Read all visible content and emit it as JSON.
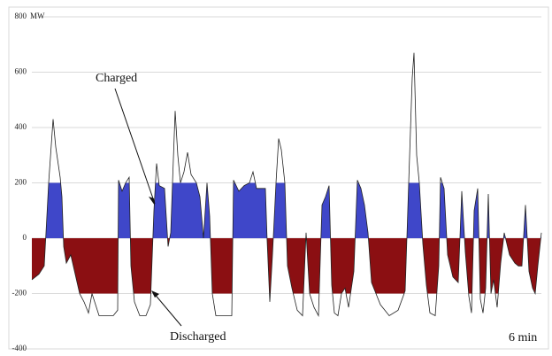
{
  "chart_data": {
    "type": "area",
    "y_unit": "MW",
    "annotations": [
      "Charged",
      "Discharged",
      "6 min"
    ],
    "ylim": [
      -400,
      800
    ],
    "yticks": [
      -400,
      -200,
      0,
      200,
      400,
      600,
      800
    ],
    "xlim": [
      0,
      576
    ],
    "grid": true,
    "fill_limits": [
      -200,
      200
    ],
    "line_color": "#222222",
    "charged_color": "#3f47c9",
    "discharged_color": "#8b0f12",
    "x": [
      0,
      8,
      14,
      16,
      19,
      24,
      27,
      32,
      34,
      36,
      39,
      44,
      49,
      54,
      59,
      64,
      68,
      72,
      76,
      84,
      92,
      97,
      98,
      102,
      106,
      110,
      112,
      116,
      122,
      129,
      134,
      138,
      141,
      144,
      150,
      154,
      157,
      159,
      162,
      165,
      168,
      172,
      176,
      180,
      186,
      190,
      194,
      198,
      201,
      204,
      208,
      216,
      226,
      228,
      234,
      240,
      246,
      250,
      254,
      264,
      266,
      269,
      272,
      276,
      279,
      282,
      286,
      289,
      294,
      300,
      306,
      310,
      314,
      319,
      324,
      328,
      332,
      336,
      339,
      342,
      346,
      350,
      354,
      358,
      364,
      368,
      372,
      376,
      380,
      384,
      394,
      404,
      414,
      422,
      426,
      430,
      432,
      435,
      438,
      442,
      446,
      450,
      456,
      460,
      462,
      466,
      470,
      476,
      482,
      486,
      490,
      494,
      497,
      500,
      504,
      507,
      510,
      513,
      516,
      519,
      522,
      526,
      530,
      534,
      540,
      546,
      550,
      554,
      558,
      562,
      566,
      569,
      572,
      576
    ],
    "values": [
      -150,
      -130,
      -100,
      20,
      200,
      430,
      330,
      220,
      150,
      -30,
      -90,
      -60,
      -130,
      -200,
      -230,
      -270,
      -200,
      -240,
      -280,
      -280,
      -280,
      -260,
      210,
      170,
      200,
      220,
      -100,
      -230,
      -280,
      -280,
      -240,
      100,
      270,
      190,
      180,
      -30,
      20,
      200,
      460,
      300,
      200,
      240,
      310,
      230,
      200,
      150,
      0,
      200,
      80,
      -200,
      -280,
      -280,
      -280,
      210,
      170,
      190,
      200,
      240,
      180,
      180,
      -10,
      -230,
      -60,
      200,
      360,
      320,
      200,
      -100,
      -180,
      -260,
      -280,
      20,
      -200,
      -250,
      -280,
      120,
      150,
      190,
      -170,
      -270,
      -280,
      -200,
      -180,
      -250,
      -120,
      210,
      180,
      120,
      20,
      -160,
      -240,
      -280,
      -260,
      -190,
      200,
      580,
      670,
      300,
      200,
      -20,
      -170,
      -270,
      -280,
      -100,
      220,
      180,
      -60,
      -140,
      -160,
      170,
      -50,
      -210,
      -270,
      100,
      180,
      -220,
      -270,
      -180,
      160,
      -200,
      -150,
      -250,
      -90,
      20,
      -60,
      -90,
      -100,
      -100,
      120,
      -120,
      -180,
      -200,
      -100,
      20
    ]
  }
}
